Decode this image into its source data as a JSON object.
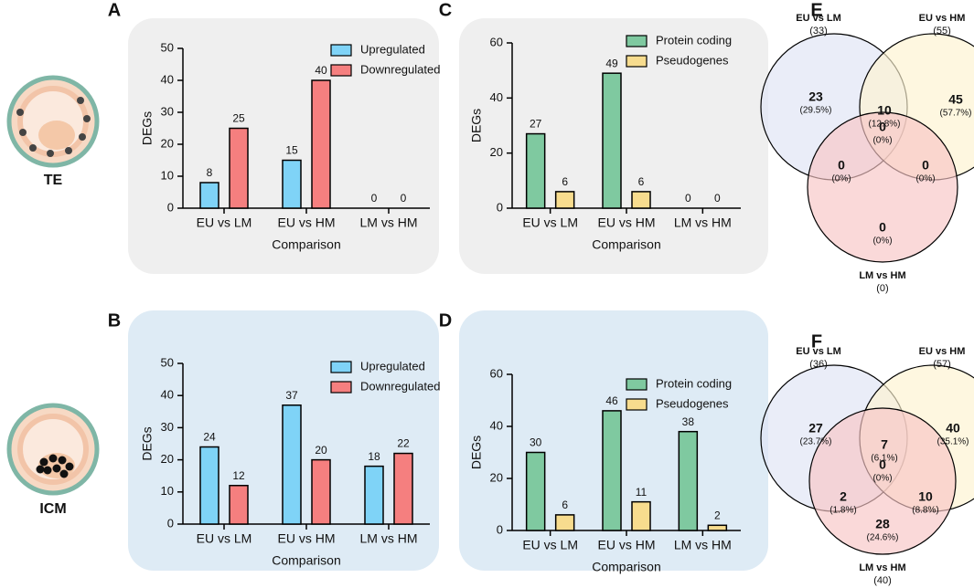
{
  "row_labels": [
    "TE",
    "ICM"
  ],
  "chart_data": [
    {
      "type": "bar",
      "panel": "A",
      "background": "#efefef",
      "ylabel": "DEGs",
      "xlabel": "Comparison",
      "categories": [
        "EU vs LM",
        "EU vs HM",
        "LM vs HM"
      ],
      "series": [
        {
          "name": "Upregulated",
          "color": "#7fd3f7",
          "values": [
            8,
            15,
            0
          ]
        },
        {
          "name": "Downregulated",
          "color": "#f57f7f",
          "values": [
            25,
            40,
            0
          ]
        }
      ],
      "ylim": [
        0,
        50
      ],
      "yticks": [
        0,
        10,
        20,
        30,
        40,
        50
      ],
      "legend": "upper right"
    },
    {
      "type": "bar",
      "panel": "B",
      "background": "#deebf5",
      "ylabel": "DEGs",
      "xlabel": "Comparison",
      "categories": [
        "EU vs LM",
        "EU vs HM",
        "LM vs HM"
      ],
      "series": [
        {
          "name": "Upregulated",
          "color": "#7fd3f7",
          "values": [
            24,
            37,
            18
          ]
        },
        {
          "name": "Downregulated",
          "color": "#f57f7f",
          "values": [
            12,
            20,
            22
          ]
        }
      ],
      "ylim": [
        0,
        50
      ],
      "yticks": [
        0,
        10,
        20,
        30,
        40,
        50
      ],
      "legend": "upper right"
    },
    {
      "type": "bar",
      "panel": "C",
      "background": "#efefef",
      "ylabel": "DEGs",
      "xlabel": "Comparison",
      "categories": [
        "EU vs LM",
        "EU vs HM",
        "LM vs HM"
      ],
      "series": [
        {
          "name": "Protein coding",
          "color": "#7fc9a0",
          "values": [
            27,
            49,
            0
          ]
        },
        {
          "name": "Pseudogenes",
          "color": "#f7dc8e",
          "values": [
            6,
            6,
            0
          ]
        }
      ],
      "ylim": [
        0,
        60
      ],
      "yticks": [
        0,
        20,
        40,
        60
      ],
      "legend": "upper right"
    },
    {
      "type": "bar",
      "panel": "D",
      "background": "#deebf5",
      "ylabel": "DEGs",
      "xlabel": "Comparison",
      "categories": [
        "EU vs LM",
        "EU vs HM",
        "LM vs HM"
      ],
      "series": [
        {
          "name": "Protein coding",
          "color": "#7fc9a0",
          "values": [
            30,
            46,
            38
          ]
        },
        {
          "name": "Pseudogenes",
          "color": "#f7dc8e",
          "values": [
            6,
            11,
            2
          ]
        }
      ],
      "ylim": [
        0,
        60
      ],
      "yticks": [
        0,
        20,
        40,
        60
      ],
      "legend": "upper right"
    },
    {
      "type": "venn",
      "panel": "E",
      "sets": [
        {
          "name": "EU vs LM",
          "count": 33,
          "count_label": "(33)",
          "color": "#dfe4f4"
        },
        {
          "name": "EU vs HM",
          "count": 55,
          "count_label": "(55)",
          "color": "#fdf3cf"
        },
        {
          "name": "LM vs HM",
          "count": 0,
          "count_label": "(0)",
          "color": "#f8c4c4"
        }
      ],
      "regions": [
        {
          "count": 23,
          "percent": 29.5,
          "percent_label": "(29.5%)"
        },
        {
          "count": 45,
          "percent": 57.7,
          "percent_label": "(57.7%)"
        },
        {
          "count": 0,
          "percent": 0,
          "percent_label": "(0%)"
        },
        {
          "count": 10,
          "percent": 12.8,
          "percent_label": "(12.8%)"
        },
        {
          "count": 0,
          "percent": 0,
          "percent_label": "(0%)"
        },
        {
          "count": 0,
          "percent": 0,
          "percent_label": "(0%)"
        },
        {
          "count": 0,
          "percent": 0,
          "percent_label": "(0%)"
        }
      ]
    },
    {
      "type": "venn",
      "panel": "F",
      "sets": [
        {
          "name": "EU vs LM",
          "count": 36,
          "count_label": "(36)",
          "color": "#dfe4f4"
        },
        {
          "name": "EU vs HM",
          "count": 57,
          "count_label": "(57)",
          "color": "#fdf3cf"
        },
        {
          "name": "LM vs HM",
          "count": 40,
          "count_label": "(40)",
          "color": "#f8c4c4"
        }
      ],
      "regions": [
        {
          "count": 27,
          "percent": 23.7,
          "percent_label": "(23.7%)"
        },
        {
          "count": 40,
          "percent": 35.1,
          "percent_label": "(35.1%)"
        },
        {
          "count": 28,
          "percent": 24.6,
          "percent_label": "(24.6%)"
        },
        {
          "count": 7,
          "percent": 6.1,
          "percent_label": "(6.1%)"
        },
        {
          "count": 2,
          "percent": 1.8,
          "percent_label": "(1.8%)"
        },
        {
          "count": 10,
          "percent": 8.8,
          "percent_label": "(8.8%)"
        },
        {
          "count": 0,
          "percent": 0,
          "percent_label": "(0%)"
        }
      ]
    }
  ]
}
